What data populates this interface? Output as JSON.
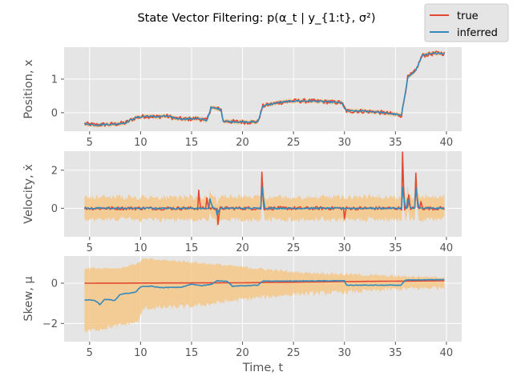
{
  "figure": {
    "title": "State Vector Filtering: p(α_t | y_{1:t}, σ²)",
    "legend": {
      "placement": "top-right",
      "entries": [
        {
          "label": "true",
          "color": "#E24A33"
        },
        {
          "label": "inferred",
          "color": "#348ABD"
        }
      ]
    },
    "band_color": "#F5C27A",
    "background": "#E5E5E5",
    "grid": true
  },
  "chart_data": [
    {
      "type": "line",
      "ylabel": "Position, x",
      "xlabel": "",
      "xlim": [
        2.5,
        41.5
      ],
      "ylim": [
        -0.55,
        1.95
      ],
      "xticks": [
        5,
        10,
        15,
        20,
        25,
        30,
        35,
        40
      ],
      "yticks": [
        0,
        1
      ],
      "segments": [
        [
          4.5,
          -0.33
        ],
        [
          5.5,
          -0.36
        ],
        [
          6.5,
          -0.35
        ],
        [
          7.5,
          -0.34
        ],
        [
          8.5,
          -0.3
        ],
        [
          9.5,
          -0.15
        ],
        [
          10.5,
          -0.1
        ],
        [
          11.5,
          -0.12
        ],
        [
          12.5,
          -0.1
        ],
        [
          13.5,
          -0.17
        ],
        [
          14.5,
          -0.19
        ],
        [
          15.5,
          -0.17
        ],
        [
          16.5,
          -0.23
        ],
        [
          16.9,
          0.15
        ],
        [
          17.9,
          0.1
        ],
        [
          18.1,
          -0.25
        ],
        [
          19.5,
          -0.27
        ],
        [
          20.5,
          -0.28
        ],
        [
          21.5,
          -0.27
        ],
        [
          22.0,
          0.2
        ],
        [
          23.5,
          0.3
        ],
        [
          25.0,
          0.35
        ],
        [
          26.5,
          0.35
        ],
        [
          28.0,
          0.33
        ],
        [
          29.7,
          0.3
        ],
        [
          30.2,
          0.05
        ],
        [
          31.5,
          0.05
        ],
        [
          33.0,
          0.03
        ],
        [
          34.5,
          -0.03
        ],
        [
          35.6,
          -0.08
        ],
        [
          36.2,
          1.05
        ],
        [
          37.0,
          1.25
        ],
        [
          37.6,
          1.7
        ],
        [
          38.5,
          1.75
        ],
        [
          39.3,
          1.78
        ],
        [
          39.8,
          1.76
        ]
      ]
    },
    {
      "type": "line",
      "ylabel": "Velocity, ẋ",
      "xlabel": "",
      "xlim": [
        2.5,
        41.5
      ],
      "ylim": [
        -1.5,
        3.0
      ],
      "xticks": [
        5,
        10,
        15,
        20,
        25,
        30,
        35,
        40
      ],
      "yticks": [
        0,
        2
      ],
      "true_spikes": [
        [
          15.7,
          0.95
        ],
        [
          16.5,
          0.55
        ],
        [
          17.6,
          -0.85
        ],
        [
          21.9,
          1.9
        ],
        [
          30.0,
          -0.55
        ],
        [
          35.7,
          2.95
        ],
        [
          36.3,
          0.7
        ],
        [
          37.0,
          1.85
        ],
        [
          37.5,
          0.35
        ]
      ],
      "inferred_spikes": [
        [
          16.8,
          0.5
        ],
        [
          17.5,
          -0.35
        ],
        [
          21.9,
          1.15
        ],
        [
          35.7,
          1.1
        ],
        [
          36.2,
          0.5
        ],
        [
          37.0,
          1.1
        ]
      ],
      "band_halfwidth": 0.45
    },
    {
      "type": "line",
      "ylabel": "Skew, μ",
      "xlabel": "Time, t",
      "xlim": [
        2.5,
        41.5
      ],
      "ylim": [
        -2.9,
        1.35
      ],
      "xticks": [
        5,
        10,
        15,
        20,
        25,
        30,
        35,
        40
      ],
      "yticks": [
        -2,
        0
      ],
      "true": [
        [
          4.5,
          0.0
        ],
        [
          20,
          0.02
        ],
        [
          30,
          0.08
        ],
        [
          39.8,
          0.12
        ]
      ],
      "inferred": [
        [
          4.5,
          -0.82
        ],
        [
          5.5,
          -0.85
        ],
        [
          6.0,
          -1.05
        ],
        [
          6.5,
          -0.8
        ],
        [
          7.5,
          -0.85
        ],
        [
          8.0,
          -0.55
        ],
        [
          9.5,
          -0.45
        ],
        [
          10.0,
          -0.18
        ],
        [
          11.0,
          -0.15
        ],
        [
          12.0,
          -0.22
        ],
        [
          14.0,
          -0.2
        ],
        [
          15.0,
          -0.05
        ],
        [
          16.0,
          -0.12
        ],
        [
          17.0,
          -0.05
        ],
        [
          17.5,
          0.12
        ],
        [
          18.5,
          0.1
        ],
        [
          19.0,
          -0.15
        ],
        [
          21.5,
          -0.1
        ],
        [
          22.0,
          0.1
        ],
        [
          30.0,
          0.12
        ],
        [
          30.2,
          -0.1
        ],
        [
          35.5,
          -0.1
        ],
        [
          36.0,
          0.15
        ],
        [
          39.8,
          0.18
        ]
      ],
      "band": [
        [
          4.5,
          -2.4,
          0.75
        ],
        [
          8.0,
          -2.1,
          0.75
        ],
        [
          9.8,
          -1.9,
          1.0
        ],
        [
          10.3,
          -1.25,
          1.2
        ],
        [
          15.0,
          -1.15,
          1.05
        ],
        [
          20.0,
          -0.8,
          0.8
        ],
        [
          25.0,
          -0.55,
          0.55
        ],
        [
          30.0,
          -0.45,
          0.45
        ],
        [
          35.0,
          -0.3,
          0.35
        ],
        [
          39.8,
          -0.2,
          0.3
        ]
      ]
    }
  ]
}
